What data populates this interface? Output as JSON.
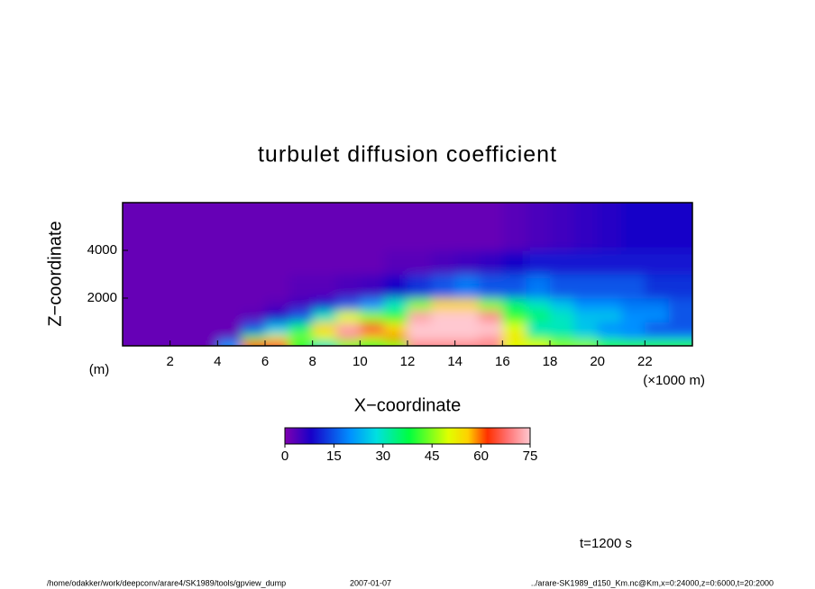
{
  "chart_data": {
    "type": "heatmap",
    "title": "turbulet diffusion coefficient",
    "x_label": "X−coordinate",
    "x_unit": "(×1000 m)",
    "y_label": "Z−coordinate",
    "y_unit": "(m)",
    "xbins": [
      0,
      1,
      2,
      3,
      4,
      5,
      6,
      7,
      8,
      9,
      10,
      11,
      12,
      13,
      14,
      15,
      16,
      17,
      18,
      19,
      20,
      21,
      22,
      23,
      24
    ],
    "ybins": [
      0,
      250,
      500,
      1000,
      1500,
      2000,
      3000,
      4000,
      6000
    ],
    "xlim": [
      0,
      24
    ],
    "xticks": [
      2,
      4,
      6,
      8,
      10,
      12,
      14,
      16,
      18,
      20,
      22
    ],
    "ylim": [
      0,
      6000
    ],
    "yticks": [
      2000,
      4000
    ],
    "values": [
      [
        2,
        2,
        2,
        2,
        20,
        60,
        65,
        40,
        30,
        45,
        40,
        45,
        70,
        70,
        70,
        70,
        50,
        50,
        45,
        45,
        40,
        40,
        40,
        40
      ],
      [
        2,
        2,
        2,
        2,
        3,
        40,
        50,
        45,
        50,
        70,
        55,
        60,
        75,
        75,
        75,
        72,
        55,
        40,
        35,
        30,
        25,
        20,
        20,
        20
      ],
      [
        2,
        2,
        2,
        2,
        2,
        15,
        25,
        35,
        55,
        72,
        65,
        55,
        75,
        75,
        75,
        75,
        50,
        30,
        30,
        25,
        20,
        20,
        15,
        15
      ],
      [
        2,
        2,
        2,
        2,
        2,
        3,
        8,
        15,
        30,
        50,
        45,
        40,
        72,
        75,
        75,
        70,
        40,
        35,
        30,
        25,
        25,
        20,
        20,
        15
      ],
      [
        2,
        2,
        2,
        2,
        2,
        2,
        3,
        5,
        10,
        15,
        20,
        30,
        45,
        55,
        55,
        45,
        35,
        30,
        25,
        20,
        20,
        18,
        18,
        15
      ],
      [
        2,
        2,
        2,
        2,
        2,
        2,
        2,
        3,
        3,
        4,
        5,
        8,
        12,
        15,
        18,
        15,
        15,
        18,
        15,
        15,
        15,
        15,
        12,
        12
      ],
      [
        2,
        2,
        2,
        2,
        2,
        2,
        2,
        2,
        2,
        2,
        2,
        3,
        3,
        4,
        5,
        6,
        8,
        10,
        10,
        10,
        10,
        10,
        10,
        10
      ],
      [
        2,
        2,
        2,
        2,
        2,
        2,
        2,
        2,
        2,
        2,
        2,
        2,
        2,
        2,
        2,
        2,
        3,
        4,
        5,
        6,
        7,
        8,
        8,
        8
      ]
    ],
    "clim": [
      0,
      75
    ],
    "cticks": [
      0,
      15,
      30,
      45,
      60,
      75
    ],
    "colormap": [
      {
        "value": 0,
        "color": "#8000b0"
      },
      {
        "value": 8,
        "color": "#1800c8"
      },
      {
        "value": 20,
        "color": "#0090ff"
      },
      {
        "value": 28,
        "color": "#00e0e0"
      },
      {
        "value": 38,
        "color": "#00ff40"
      },
      {
        "value": 50,
        "color": "#e0ff00"
      },
      {
        "value": 56,
        "color": "#ffd000"
      },
      {
        "value": 62,
        "color": "#ff3000"
      },
      {
        "value": 68,
        "color": "#ff7070"
      },
      {
        "value": 75,
        "color": "#ffc8d0"
      }
    ],
    "time_label": "t=1200 s",
    "footer_path": "/home/odakker/work/deepconv/arare4/SK1989/tools/gpview_dump",
    "footer_date": "2007-01-07",
    "footer_file": "../arare-SK1989_d150_Km.nc@Km,x=0:24000,z=0:6000,t=20:2000"
  }
}
